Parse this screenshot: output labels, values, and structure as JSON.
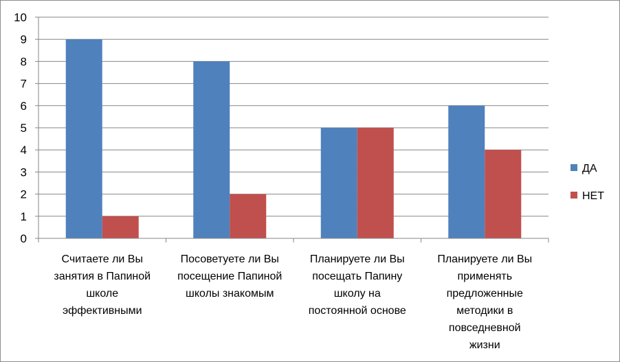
{
  "chart_data": {
    "type": "bar",
    "categories": [
      [
        "Считаете ли Вы",
        "занятия в Папиной",
        "школе",
        "эффективными"
      ],
      [
        "Посоветуете ли Вы",
        "посещение Папиной",
        "школы знакомым"
      ],
      [
        "Планируете ли Вы",
        "посещать Папину",
        "школу на",
        "постоянной основе"
      ],
      [
        "Планируете ли Вы",
        "применять",
        "предложенные",
        "методики в",
        "повседневной",
        "жизни"
      ]
    ],
    "series": [
      {
        "name": "ДА",
        "color": "#4f81bd",
        "values": [
          9,
          8,
          5,
          6
        ]
      },
      {
        "name": "НЕТ",
        "color": "#c0504d",
        "values": [
          1,
          2,
          5,
          4
        ]
      }
    ],
    "y_ticks": [
      "0",
      "1",
      "2",
      "3",
      "4",
      "5",
      "6",
      "7",
      "8",
      "9",
      "10"
    ],
    "ylim": [
      0,
      10
    ],
    "grid": true,
    "legend": "right"
  }
}
